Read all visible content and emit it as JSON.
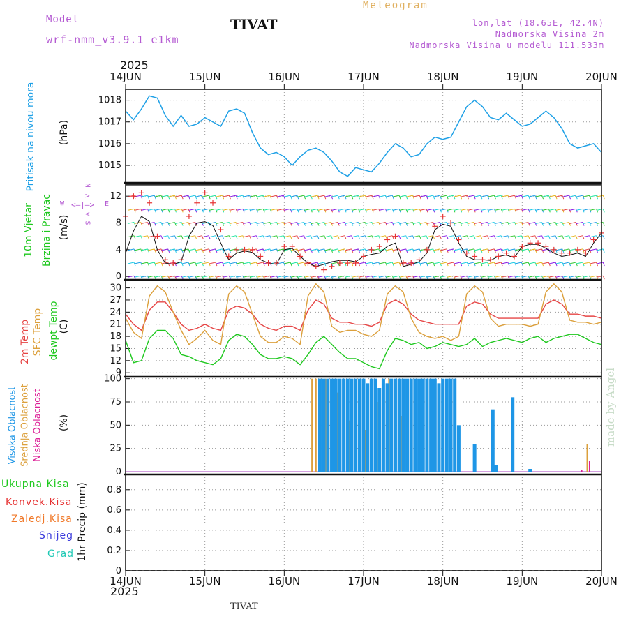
{
  "header": {
    "model_label": "Model",
    "model_name": "wrf-nmm_v3.9.1 e1km",
    "title": "TIVAT",
    "meteogram": "Meteogram",
    "lonlat": "lon,lat (18.65E, 42.4N)",
    "altitude": "Nadmorska Visina 2m",
    "model_altitude": "Nadmorska Visina u modelu 111.533m",
    "year_top": "2025",
    "year_bottom": "2025",
    "footer": "TIVAT",
    "signature": "made by Angel"
  },
  "colors": {
    "pressure": "#1ea0e6",
    "wind_label": "#1fc81f",
    "temp2m": "#e64646",
    "sfc": "#dca03c",
    "dewpt": "#1ec81e",
    "cloud_high": "#1e96e6",
    "cloud_mid": "#dca03c",
    "cloud_low": "#dc1e96",
    "precip_total": "#1ec81e",
    "precip_conv": "#e63232",
    "precip_frozen": "#f07828",
    "snow": "#3c3cdc",
    "hail": "#1ec8b4",
    "compass": "#b45ad2"
  },
  "x_axis": {
    "day_labels": [
      "14JUN",
      "15JUN",
      "16JUN",
      "17JUN",
      "18JUN",
      "19JUN",
      "20JUN"
    ]
  },
  "panel_labels": {
    "pressure": {
      "name": "Pritisak na nivou mora",
      "unit": "(hPa)"
    },
    "wind": {
      "name1": "10m Vjetar",
      "name2": "Brzina i Pravac",
      "unit": "(m/s)",
      "compass_n": "N",
      "compass_s": "S",
      "compass_w": "W",
      "compass_e": "E"
    },
    "temp": {
      "t2m": "2m Temp",
      "sfc": "SFC Temp",
      "dew": "dewpt Temp",
      "unit": "(C)"
    },
    "cloud": {
      "high": "Visoka Oblacnost",
      "mid": "Srednja Oblacnost",
      "low": "Niska Oblacnost",
      "unit": "(%)"
    },
    "precip": {
      "total": "Ukupna Kisa",
      "conv": "Konvek.Kisa",
      "frozen": "Zaledj.Kisa",
      "snow": "Snijeg",
      "hail": "Grad",
      "unit": "1hr Precip (mm)"
    }
  },
  "chart_data": [
    {
      "type": "line",
      "ylabel": "(hPa)",
      "ylim": [
        1014.2,
        1018.5
      ],
      "yticks": [
        1015,
        1016,
        1017,
        1018
      ],
      "x_days": [
        0,
        0.1,
        0.2,
        0.3,
        0.4,
        0.5,
        0.6,
        0.7,
        0.8,
        0.9,
        1.0,
        1.1,
        1.2,
        1.3,
        1.4,
        1.5,
        1.6,
        1.7,
        1.8,
        1.9,
        2.0,
        2.1,
        2.2,
        2.3,
        2.4,
        2.5,
        2.6,
        2.7,
        2.8,
        2.9,
        3.0,
        3.1,
        3.2,
        3.3,
        3.4,
        3.5,
        3.6,
        3.7,
        3.8,
        3.9,
        4.0,
        4.1,
        4.2,
        4.3,
        4.4,
        4.5,
        4.6,
        4.7,
        4.8,
        4.9,
        5.0,
        5.1,
        5.2,
        5.3,
        5.4,
        5.5,
        5.6,
        5.7,
        5.8,
        5.9,
        6.0
      ],
      "series": [
        {
          "values": [
            1017.5,
            1017.1,
            1017.6,
            1018.2,
            1018.1,
            1017.3,
            1016.8,
            1017.3,
            1016.8,
            1016.9,
            1017.2,
            1017.0,
            1016.8,
            1017.5,
            1017.6,
            1017.4,
            1016.5,
            1015.8,
            1015.5,
            1015.6,
            1015.4,
            1015.0,
            1015.4,
            1015.7,
            1015.8,
            1015.6,
            1015.2,
            1014.7,
            1014.5,
            1014.9,
            1014.8,
            1014.7,
            1015.1,
            1015.6,
            1016.0,
            1015.8,
            1015.4,
            1015.5,
            1016.0,
            1016.3,
            1016.2,
            1016.3,
            1017.0,
            1017.7,
            1018.0,
            1017.7,
            1017.2,
            1017.1,
            1017.4,
            1017.1,
            1016.8,
            1016.9,
            1017.2,
            1017.5,
            1017.2,
            1016.7,
            1016.0,
            1015.8,
            1015.9,
            1016.0,
            1015.6
          ]
        }
      ]
    },
    {
      "type": "line",
      "ylabel": "(m/s)",
      "ylim": [
        -0.5,
        14
      ],
      "yticks": [
        0,
        4,
        8,
        12
      ],
      "x_days": [
        0,
        0.1,
        0.2,
        0.3,
        0.4,
        0.5,
        0.6,
        0.7,
        0.8,
        0.9,
        1.0,
        1.1,
        1.2,
        1.3,
        1.4,
        1.5,
        1.6,
        1.7,
        1.8,
        1.9,
        2.0,
        2.1,
        2.2,
        2.3,
        2.4,
        2.5,
        2.6,
        2.7,
        2.8,
        2.9,
        3.0,
        3.1,
        3.2,
        3.3,
        3.4,
        3.5,
        3.6,
        3.7,
        3.8,
        3.9,
        4.0,
        4.1,
        4.2,
        4.3,
        4.4,
        4.5,
        4.6,
        4.7,
        4.8,
        4.9,
        5.0,
        5.1,
        5.2,
        5.3,
        5.4,
        5.5,
        5.6,
        5.7,
        5.8,
        5.9,
        6.0
      ],
      "series": [
        {
          "values": [
            3.5,
            6.8,
            9.0,
            8.2,
            4.0,
            2.0,
            1.8,
            2.2,
            6.0,
            8.0,
            8.2,
            7.6,
            5.0,
            2.5,
            3.5,
            3.8,
            3.6,
            2.5,
            2.0,
            1.8,
            4.0,
            4.2,
            3.0,
            2.0,
            1.5,
            1.8,
            2.2,
            2.4,
            2.4,
            2.2,
            3.0,
            3.3,
            3.5,
            4.5,
            5.0,
            1.5,
            1.8,
            2.2,
            3.5,
            7.0,
            7.8,
            7.5,
            5.0,
            3.0,
            2.5,
            2.5,
            2.4,
            3.0,
            3.2,
            2.8,
            4.5,
            4.8,
            4.8,
            4.2,
            3.5,
            3.0,
            3.2,
            3.5,
            3.0,
            5.0,
            6.5
          ]
        },
        {
          "values": [
            9.0,
            12.0,
            12.5,
            11.0,
            6.0,
            2.5,
            2.0,
            2.5,
            9.0,
            11.0,
            12.5,
            11.0,
            7.0,
            3.0,
            4.0,
            4.0,
            4.0,
            3.0,
            2.0,
            2.0,
            4.5,
            4.5,
            3.0,
            2.0,
            1.5,
            1.0,
            1.5,
            2.0,
            2.0,
            2.0,
            3.0,
            4.0,
            4.5,
            5.5,
            6.0,
            2.0,
            2.0,
            2.5,
            4.0,
            7.5,
            9.0,
            8.0,
            5.5,
            3.5,
            3.0,
            2.5,
            2.5,
            3.0,
            3.5,
            3.0,
            4.5,
            5.0,
            5.0,
            4.5,
            4.0,
            3.5,
            3.5,
            4.0,
            3.5,
            5.5,
            6.5
          ]
        }
      ]
    },
    {
      "type": "line",
      "ylabel": "(C)",
      "ylim": [
        8,
        32
      ],
      "yticks": [
        9,
        12,
        15,
        18,
        21,
        24,
        27,
        30
      ],
      "x_days": [
        0,
        0.1,
        0.2,
        0.3,
        0.4,
        0.5,
        0.6,
        0.7,
        0.8,
        0.9,
        1.0,
        1.1,
        1.2,
        1.3,
        1.4,
        1.5,
        1.6,
        1.7,
        1.8,
        1.9,
        2.0,
        2.1,
        2.2,
        2.3,
        2.4,
        2.5,
        2.6,
        2.7,
        2.8,
        2.9,
        3.0,
        3.1,
        3.2,
        3.3,
        3.4,
        3.5,
        3.6,
        3.7,
        3.8,
        3.9,
        4.0,
        4.1,
        4.2,
        4.3,
        4.4,
        4.5,
        4.6,
        4.7,
        4.8,
        4.9,
        5.0,
        5.1,
        5.2,
        5.3,
        5.4,
        5.5,
        5.6,
        5.7,
        5.8,
        5.9,
        6.0
      ],
      "series": [
        {
          "name": "2m Temp",
          "values": [
            23.5,
            21.0,
            19.5,
            24.5,
            26.5,
            26.5,
            24.0,
            21.0,
            19.5,
            20.0,
            21.0,
            20.0,
            19.5,
            24.5,
            25.5,
            25.0,
            23.5,
            21.0,
            20.0,
            19.5,
            20.5,
            20.5,
            19.5,
            24.5,
            27.0,
            26.0,
            22.5,
            21.5,
            21.5,
            21.0,
            21.0,
            20.5,
            21.5,
            26.0,
            27.0,
            26.0,
            23.5,
            22.0,
            21.5,
            21.0,
            21.0,
            21.0,
            21.0,
            25.5,
            26.5,
            26.0,
            23.5,
            22.5,
            22.5,
            22.5,
            22.5,
            22.5,
            22.5,
            26.0,
            27.0,
            26.0,
            23.5,
            23.5,
            23.0,
            23.0,
            22.5
          ]
        },
        {
          "name": "SFC Temp",
          "values": [
            22.5,
            19.0,
            17.5,
            28.0,
            30.5,
            29.0,
            24.0,
            19.5,
            16.0,
            17.5,
            19.5,
            17.0,
            16.0,
            28.5,
            30.5,
            29.0,
            23.5,
            18.0,
            16.5,
            16.5,
            18.0,
            17.5,
            16.0,
            28.0,
            31.0,
            29.0,
            20.5,
            19.0,
            19.5,
            19.5,
            18.5,
            18.0,
            19.5,
            28.5,
            30.5,
            29.0,
            22.5,
            19.0,
            18.0,
            17.5,
            18.0,
            17.0,
            18.0,
            28.5,
            30.5,
            29.0,
            22.5,
            20.5,
            21.0,
            21.0,
            21.0,
            20.5,
            21.0,
            29.0,
            31.0,
            29.0,
            22.0,
            21.5,
            21.5,
            21.0,
            21.5
          ]
        },
        {
          "name": "dewpt Temp",
          "values": [
            17.0,
            11.5,
            12.0,
            17.5,
            19.5,
            19.5,
            17.5,
            13.5,
            13.0,
            12.0,
            11.5,
            11.0,
            12.5,
            17.0,
            18.5,
            18.0,
            16.0,
            13.5,
            12.5,
            12.5,
            13.0,
            12.5,
            11.0,
            13.5,
            16.5,
            18.0,
            16.0,
            14.0,
            12.5,
            12.5,
            11.5,
            10.5,
            10.0,
            14.5,
            17.5,
            17.0,
            16.0,
            16.5,
            15.0,
            15.5,
            16.5,
            16.0,
            15.5,
            16.0,
            17.5,
            15.5,
            16.5,
            17.0,
            17.5,
            17.0,
            16.5,
            17.5,
            18.0,
            16.5,
            17.5,
            18.0,
            18.5,
            18.5,
            17.5,
            16.5,
            16.0
          ]
        }
      ]
    },
    {
      "type": "bar",
      "ylabel": "(%)",
      "ylim": [
        -3,
        102
      ],
      "yticks": [
        0,
        25,
        50,
        75,
        100
      ],
      "series": [
        {
          "name": "Visoka Oblacnost",
          "x_days": [
            2.45,
            2.5,
            2.55,
            2.6,
            2.65,
            2.7,
            2.75,
            2.8,
            2.85,
            2.9,
            2.95,
            3.0,
            3.05,
            3.1,
            3.15,
            3.2,
            3.25,
            3.3,
            3.35,
            3.4,
            3.45,
            3.5,
            3.55,
            3.6,
            3.65,
            3.7,
            3.75,
            3.8,
            3.85,
            3.9,
            3.95,
            4.0,
            4.05,
            4.1,
            4.15,
            4.2,
            4.4,
            4.63,
            4.67,
            4.88,
            5.1
          ],
          "values": [
            100,
            100,
            100,
            100,
            100,
            100,
            100,
            100,
            100,
            100,
            100,
            100,
            95,
            100,
            100,
            90,
            100,
            95,
            100,
            100,
            100,
            100,
            100,
            100,
            100,
            100,
            100,
            100,
            100,
            100,
            95,
            100,
            100,
            100,
            100,
            50,
            30,
            67,
            7,
            80,
            3
          ]
        },
        {
          "name": "Srednja Oblacnost",
          "x_days": [
            2.35,
            2.4,
            2.45,
            2.52,
            2.6,
            2.67,
            2.75,
            2.82,
            2.9,
            2.95,
            3.02,
            3.1,
            3.17,
            3.25,
            3.32,
            3.4,
            3.47,
            5.82
          ],
          "values": [
            100,
            100,
            100,
            100,
            95,
            85,
            70,
            55,
            40,
            35,
            45,
            60,
            75,
            90,
            100,
            85,
            60,
            30
          ]
        },
        {
          "name": "Niska Oblacnost",
          "x_days": [
            5.75,
            5.85
          ],
          "values": [
            2,
            12
          ]
        }
      ]
    },
    {
      "type": "bar",
      "ylabel": "1hr Precip (mm)",
      "ylim": [
        0,
        0.95
      ],
      "yticks": [
        0,
        0.2,
        0.4,
        0.6,
        0.8
      ],
      "series": []
    }
  ]
}
